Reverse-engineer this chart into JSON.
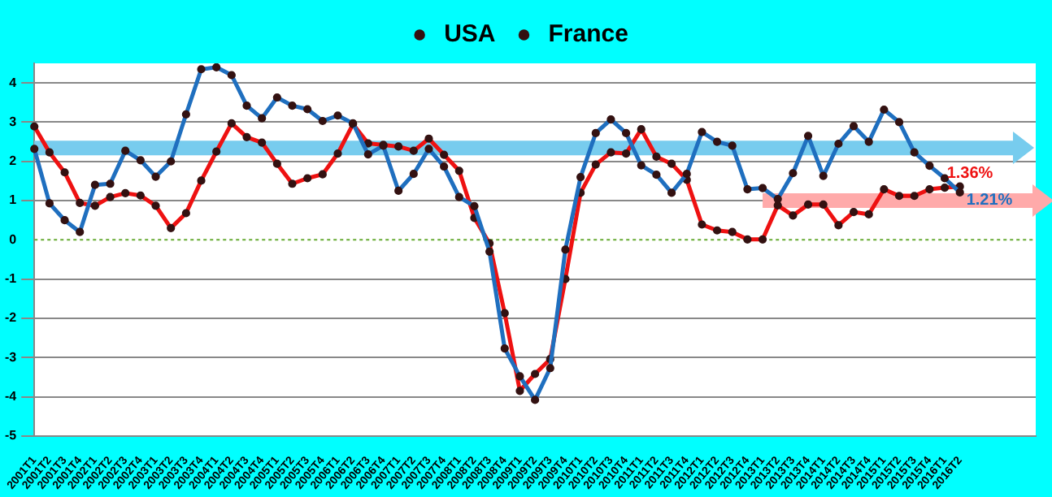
{
  "chart_data": {
    "type": "line",
    "categories": [
      "2001T1",
      "2001T2",
      "2001T3",
      "2001T4",
      "2002T1",
      "2002T2",
      "2002T3",
      "2002T4",
      "2003T1",
      "2003T2",
      "2003T3",
      "2003T4",
      "2004T1",
      "2004T2",
      "2004T3",
      "2004T4",
      "2005T1",
      "2005T2",
      "2005T3",
      "2005T4",
      "2006T1",
      "2006T2",
      "2006T3",
      "2006T4",
      "2007T1",
      "2007T2",
      "2007T3",
      "2007T4",
      "2008T1",
      "2008T2",
      "2008T3",
      "2008T4",
      "2009T1",
      "2009T2",
      "2009T3",
      "2009T4",
      "2010T1",
      "2010T2",
      "2010T3",
      "2010T4",
      "2011T1",
      "2011T2",
      "2011T3",
      "2011T4",
      "2012T1",
      "2012T2",
      "2012T3",
      "2012T4",
      "2013T1",
      "2013T2",
      "2013T3",
      "2013T4",
      "2014T1",
      "2014T2",
      "2014T3",
      "2014T4",
      "2015T1",
      "2015T2",
      "2015T3",
      "2015T4",
      "2016T1",
      "2016T2",
      null,
      null,
      null,
      null,
      null
    ],
    "series": [
      {
        "name": "USA",
        "color": "#1f6fbf",
        "values": [
          2.32,
          0.93,
          0.5,
          0.2,
          1.4,
          1.43,
          2.27,
          2.03,
          1.61,
          2.0,
          3.2,
          4.35,
          4.4,
          4.2,
          3.42,
          3.1,
          3.63,
          3.42,
          3.33,
          3.03,
          3.17,
          2.97,
          2.18,
          2.4,
          1.25,
          1.68,
          2.32,
          1.87,
          1.09,
          0.86,
          -0.3,
          -2.77,
          -3.48,
          -4.08,
          -3.27,
          -0.25,
          1.6,
          2.72,
          3.07,
          2.72,
          1.9,
          1.66,
          1.2,
          1.68,
          2.75,
          2.5,
          2.4,
          1.29,
          1.32,
          1.04,
          1.7,
          2.65,
          1.63,
          2.45,
          2.9,
          2.5,
          3.32,
          3.0,
          2.23,
          1.89,
          1.57,
          1.21,
          null,
          null,
          null,
          null,
          null
        ]
      },
      {
        "name": "France",
        "color": "#ee1111",
        "values": [
          2.89,
          2.23,
          1.72,
          0.94,
          0.87,
          1.09,
          1.19,
          1.13,
          0.87,
          0.3,
          0.68,
          1.51,
          2.25,
          2.97,
          2.62,
          2.48,
          1.94,
          1.43,
          1.57,
          1.67,
          2.2,
          2.95,
          2.46,
          2.42,
          2.38,
          2.27,
          2.58,
          2.17,
          1.76,
          0.56,
          -0.09,
          -1.87,
          -3.85,
          -3.42,
          -3.04,
          -1.0,
          1.2,
          1.92,
          2.23,
          2.2,
          2.82,
          2.12,
          1.94,
          1.53,
          0.39,
          0.24,
          0.2,
          0.01,
          0.01,
          0.88,
          0.62,
          0.9,
          0.9,
          0.37,
          0.71,
          0.65,
          1.29,
          1.12,
          1.12,
          1.29,
          1.33,
          1.36,
          null,
          null,
          null,
          null,
          null
        ]
      },
      {
        "color": "#ffaaaa",
        "marker": "none",
        "values": [
          null,
          null,
          null,
          null,
          null,
          null,
          null,
          null,
          null,
          null,
          null,
          null,
          null,
          null,
          null,
          null,
          null,
          null,
          null,
          null,
          null,
          null,
          null,
          null,
          null,
          null,
          null,
          null,
          null,
          null,
          null,
          null,
          null,
          null,
          null,
          null,
          null,
          null,
          null,
          null,
          null,
          null,
          null,
          null,
          null,
          null,
          null,
          null,
          1.0,
          1.0,
          1.0,
          1.0,
          1.0,
          1.0,
          1.0,
          1.0,
          1.0,
          1.0,
          1.0,
          1.0,
          1.0,
          1.0,
          1.0,
          1.0,
          1.0,
          1.0,
          1.0
        ]
      }
    ],
    "ylim": [
      -5,
      4.5
    ],
    "yticks": [
      -5,
      -4,
      -3,
      -2,
      -1,
      0,
      1,
      2,
      3,
      4
    ],
    "grid": "y",
    "legend": "top",
    "marker": "circle",
    "line_style": "solid",
    "ref_lines": [
      {
        "axis": "y",
        "value": 0,
        "color": "#66aa33",
        "line_style": "dotted"
      },
      {
        "axis": "y",
        "value": 2.34,
        "color": "#77ccee",
        "line_style": "solid"
      }
    ],
    "annotations": [
      {
        "text": "1.36%",
        "x": "2016T2",
        "y": 1.36
      },
      {
        "text": "1.21%",
        "x": "2016T2",
        "y": 1.21
      }
    ]
  }
}
